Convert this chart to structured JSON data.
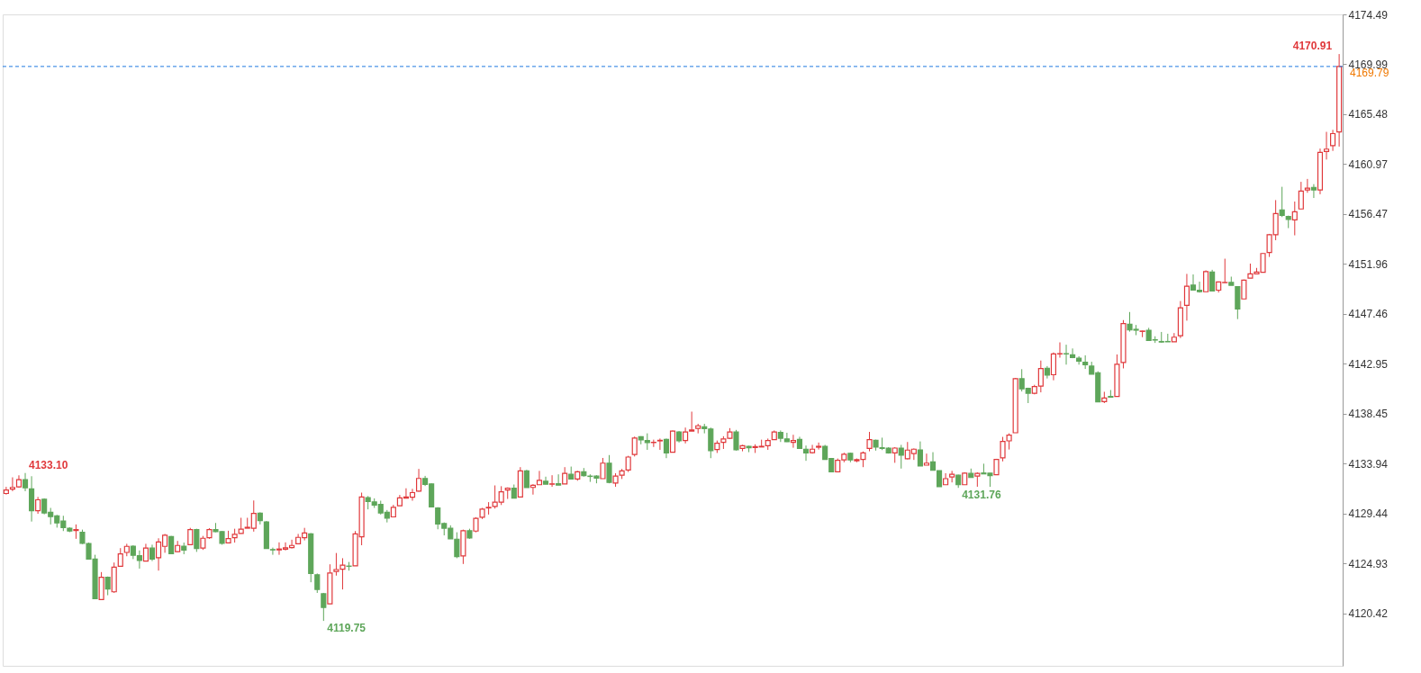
{
  "chart_data": {
    "type": "candlestick",
    "categories": [
      null,
      null,
      null,
      null,
      null,
      null,
      null,
      null,
      null,
      null,
      null,
      null,
      null,
      null,
      null,
      null,
      null,
      null,
      null,
      null,
      null,
      null,
      null,
      null,
      null,
      null,
      null,
      null,
      null,
      null,
      null,
      null,
      null,
      null,
      null,
      null,
      null,
      null,
      null,
      null,
      null,
      null,
      null,
      null,
      null,
      null,
      null,
      null,
      null,
      null,
      null,
      null,
      null,
      null,
      null,
      null,
      null,
      null,
      null,
      null,
      null,
      null,
      null,
      null,
      null,
      null,
      null,
      null,
      null,
      null,
      null,
      null,
      null,
      null,
      null,
      null,
      null,
      null,
      null,
      null,
      null,
      null,
      null,
      null,
      null,
      null,
      null,
      null,
      null,
      null,
      null,
      null,
      null,
      null,
      null,
      null,
      null,
      null,
      null,
      null,
      null,
      null,
      null,
      null,
      null,
      null,
      null,
      null,
      null,
      null,
      null,
      null,
      null,
      null,
      null,
      null,
      null,
      null,
      null,
      null,
      null,
      null,
      null,
      null,
      null,
      null,
      null,
      null,
      null,
      null,
      null,
      null,
      null,
      null,
      null,
      null,
      null,
      null,
      null,
      null,
      null,
      null,
      null,
      null,
      null,
      null,
      null,
      null,
      null,
      null,
      null,
      null,
      null,
      null,
      null,
      null,
      null,
      null,
      null,
      null,
      null,
      null,
      null,
      null,
      null,
      null,
      null,
      null,
      null,
      null,
      null,
      null,
      null,
      null,
      null,
      null,
      null,
      null,
      null,
      null,
      null,
      null,
      null,
      null,
      null,
      null,
      null,
      null,
      null,
      null,
      null,
      null,
      null,
      null,
      null,
      null,
      null,
      null,
      null,
      null,
      null,
      null,
      null,
      null,
      null,
      null,
      null,
      null,
      null,
      null,
      null
    ],
    "ohlc": [
      [
        4131.25,
        4131.85,
        4131.15,
        4131.56
      ],
      [
        4131.64,
        4132.71,
        4131.46,
        4131.8
      ],
      [
        4131.85,
        4132.89,
        4131.77,
        4132.5
      ],
      [
        4132.5,
        4133.1,
        4131.46,
        4131.77
      ],
      [
        4131.67,
        4132.81,
        4128.72,
        4129.69
      ],
      [
        4129.69,
        4130.94,
        4129.42,
        4130.68
      ],
      [
        4130.73,
        4130.81,
        4129.37,
        4129.5
      ],
      [
        4129.55,
        4129.95,
        4128.46,
        4129.16
      ],
      [
        4129.24,
        4129.32,
        4128.17,
        4128.59
      ],
      [
        4128.77,
        4129.24,
        4127.86,
        4128.17
      ],
      [
        4128.12,
        4128.2,
        4127.76,
        4127.86
      ],
      [
        4127.91,
        4128.46,
        4127.16,
        4127.99
      ],
      [
        4127.76,
        4127.99,
        4126.69,
        4126.76
      ],
      [
        4126.74,
        4126.82,
        4125.33,
        4125.33
      ],
      [
        4125.33,
        4125.72,
        4121.76,
        4121.76
      ],
      [
        4121.68,
        4124.16,
        4121.68,
        4123.69
      ],
      [
        4123.69,
        4123.76,
        4122.07,
        4122.64
      ],
      [
        4122.38,
        4125.02,
        4122.28,
        4124.6
      ],
      [
        4124.68,
        4126.32,
        4124.68,
        4125.8
      ],
      [
        4125.93,
        4126.71,
        4125.59,
        4126.48
      ],
      [
        4126.5,
        4126.58,
        4125.33,
        4125.67
      ],
      [
        4125.64,
        4126.11,
        4124.47,
        4125.2
      ],
      [
        4125.15,
        4126.71,
        4125.15,
        4126.32
      ],
      [
        4126.32,
        4126.63,
        4125.15,
        4125.33
      ],
      [
        4125.46,
        4127.21,
        4124.29,
        4126.87
      ],
      [
        4126.48,
        4127.6,
        4125.9,
        4127.49
      ],
      [
        4127.36,
        4127.42,
        4125.82,
        4125.82
      ],
      [
        4126.01,
        4126.97,
        4125.98,
        4126.56
      ],
      [
        4126.5,
        4126.82,
        4125.77,
        4126.14
      ],
      [
        4126.63,
        4128.15,
        4126.63,
        4127.99
      ],
      [
        4127.99,
        4128.07,
        4125.98,
        4126.29
      ],
      [
        4126.32,
        4127.42,
        4126.16,
        4127.21
      ],
      [
        4127.26,
        4128.12,
        4127.16,
        4127.99
      ],
      [
        4127.99,
        4128.59,
        4127.76,
        4127.81
      ],
      [
        4127.81,
        4127.86,
        4126.63,
        4126.76
      ],
      [
        4126.79,
        4127.89,
        4126.76,
        4127.18
      ],
      [
        4127.26,
        4128.07,
        4126.82,
        4127.57
      ],
      [
        4127.65,
        4129.06,
        4127.62,
        4128.04
      ],
      [
        4128.12,
        4129.06,
        4128.12,
        4128.2
      ],
      [
        4128.12,
        4130.62,
        4127.81,
        4129.45
      ],
      [
        4129.48,
        4129.55,
        4128.46,
        4128.8
      ],
      [
        4128.69,
        4128.77,
        4126.29,
        4126.29
      ],
      [
        4126.19,
        4126.37,
        4125.72,
        4126.16
      ],
      [
        4126.16,
        4126.84,
        4125.72,
        4126.24
      ],
      [
        4126.22,
        4126.84,
        4126.11,
        4126.35
      ],
      [
        4126.37,
        4127.08,
        4126.29,
        4126.56
      ],
      [
        4126.71,
        4127.6,
        4126.71,
        4127.29
      ],
      [
        4127.26,
        4128.15,
        4127.02,
        4127.68
      ],
      [
        4127.6,
        4127.68,
        4123.24,
        4124.03
      ],
      [
        4123.92,
        4124.03,
        4122.28,
        4122.59
      ],
      [
        4122.2,
        4122.28,
        4119.75,
        4120.97
      ],
      [
        4121.29,
        4124.86,
        4121.29,
        4124.08
      ],
      [
        4124.21,
        4125.88,
        4123.84,
        4124.39
      ],
      [
        4124.42,
        4125.41,
        4122.59,
        4124.78
      ],
      [
        4124.7,
        4125.07,
        4124.29,
        4124.68
      ],
      [
        4124.73,
        4127.86,
        4124.73,
        4127.6
      ],
      [
        4127.34,
        4131.33,
        4126.58,
        4130.94
      ],
      [
        4130.88,
        4131.02,
        4129.82,
        4130.52
      ],
      [
        4130.49,
        4130.81,
        4129.95,
        4130.21
      ],
      [
        4130.26,
        4130.6,
        4129.35,
        4129.5
      ],
      [
        4129.55,
        4129.76,
        4128.64,
        4129.03
      ],
      [
        4129.14,
        4130.23,
        4129.14,
        4130.0
      ],
      [
        4130.15,
        4131.12,
        4130.15,
        4130.86
      ],
      [
        4130.83,
        4131.72,
        4130.83,
        4130.94
      ],
      [
        4130.91,
        4131.67,
        4130.6,
        4131.33
      ],
      [
        4131.46,
        4133.47,
        4131.41,
        4132.61
      ],
      [
        4132.61,
        4132.84,
        4131.93,
        4132.08
      ],
      [
        4132.11,
        4132.16,
        4130.05,
        4130.05
      ],
      [
        4129.95,
        4130.02,
        4128.02,
        4128.49
      ],
      [
        4128.54,
        4128.64,
        4127.47,
        4128.12
      ],
      [
        4128.12,
        4128.38,
        4127.16,
        4127.16
      ],
      [
        4127.13,
        4127.75,
        4125.41,
        4125.56
      ],
      [
        4125.62,
        4127.99,
        4124.89,
        4127.89
      ],
      [
        4127.89,
        4128.07,
        4127.16,
        4127.23
      ],
      [
        4127.86,
        4129.11,
        4127.75,
        4129.01
      ],
      [
        4129.11,
        4129.95,
        4128.95,
        4129.84
      ],
      [
        4129.95,
        4130.47,
        4129.35,
        4130.0
      ],
      [
        4130.08,
        4131.98,
        4129.89,
        4130.47
      ],
      [
        4130.47,
        4131.91,
        4130.21,
        4131.41
      ],
      [
        4131.57,
        4131.8,
        4130.76,
        4131.72
      ],
      [
        4131.72,
        4132.06,
        4130.84,
        4130.84
      ],
      [
        4130.94,
        4133.63,
        4130.94,
        4133.29
      ],
      [
        4133.29,
        4133.39,
        4131.78,
        4131.78
      ],
      [
        4131.8,
        4132.09,
        4131.15,
        4131.99
      ],
      [
        4132.04,
        4133.29,
        4132.04,
        4132.43
      ],
      [
        4132.35,
        4132.77,
        4132.09,
        4132.09
      ],
      [
        4132.09,
        4132.9,
        4131.86,
        4132.12
      ],
      [
        4132.14,
        4132.98,
        4132.01,
        4132.01
      ],
      [
        4132.12,
        4133.63,
        4132.12,
        4133.06
      ],
      [
        4132.98,
        4133.68,
        4132.56,
        4132.56
      ],
      [
        4132.56,
        4133.29,
        4132.4,
        4133.21
      ],
      [
        4133.21,
        4133.55,
        4132.77,
        4132.87
      ],
      [
        4132.82,
        4132.98,
        4132.3,
        4132.79
      ],
      [
        4132.82,
        4132.9,
        4132.17,
        4132.64
      ],
      [
        4132.59,
        4134.46,
        4132.59,
        4133.99
      ],
      [
        4133.99,
        4134.72,
        4132.17,
        4132.25
      ],
      [
        4132.19,
        4133.08,
        4131.86,
        4132.82
      ],
      [
        4132.9,
        4133.47,
        4132.56,
        4133.29
      ],
      [
        4133.37,
        4134.65,
        4133.19,
        4134.54
      ],
      [
        4134.78,
        4136.39,
        4134.59,
        4136.26
      ],
      [
        4136.37,
        4136.42,
        4135.69,
        4136.08
      ],
      [
        4136.03,
        4136.68,
        4135.19,
        4135.85
      ],
      [
        4135.85,
        4136.11,
        4135.45,
        4135.87
      ],
      [
        4136.0,
        4136.21,
        4135.19,
        4136.05
      ],
      [
        4136.13,
        4136.21,
        4134.44,
        4134.91
      ],
      [
        4134.98,
        4136.94,
        4134.98,
        4136.89
      ],
      [
        4136.81,
        4136.89,
        4135.85,
        4136.0
      ],
      [
        4136.03,
        4137.2,
        4135.77,
        4136.81
      ],
      [
        4136.89,
        4138.64,
        4136.89,
        4136.99
      ],
      [
        4137.12,
        4137.54,
        4136.68,
        4137.36
      ],
      [
        4137.28,
        4137.54,
        4136.68,
        4137.1
      ],
      [
        4137.07,
        4137.2,
        4134.44,
        4135.12
      ],
      [
        4135.22,
        4136.03,
        4134.91,
        4135.79
      ],
      [
        4135.87,
        4136.42,
        4135.27,
        4136.18
      ],
      [
        4136.24,
        4137.15,
        4136.16,
        4136.81
      ],
      [
        4136.81,
        4136.99,
        4135.12,
        4135.19
      ],
      [
        4135.32,
        4135.64,
        4135.06,
        4135.56
      ],
      [
        4135.51,
        4135.56,
        4134.98,
        4135.38
      ],
      [
        4135.4,
        4135.69,
        4134.91,
        4135.48
      ],
      [
        4135.45,
        4136.11,
        4135.45,
        4135.51
      ],
      [
        4135.56,
        4136.21,
        4135.19,
        4136.03
      ],
      [
        4136.11,
        4136.94,
        4136.11,
        4136.81
      ],
      [
        4136.76,
        4136.94,
        4135.9,
        4136.24
      ],
      [
        4136.18,
        4136.73,
        4135.9,
        4135.92
      ],
      [
        4135.87,
        4136.55,
        4135.38,
        4136.03
      ],
      [
        4136.13,
        4136.37,
        4135.32,
        4135.32
      ],
      [
        4135.25,
        4135.58,
        4134.2,
        4134.91
      ],
      [
        4134.93,
        4135.64,
        4134.85,
        4135.25
      ],
      [
        4135.43,
        4135.85,
        4135.22,
        4135.51
      ],
      [
        4135.51,
        4135.64,
        4134.33,
        4134.33
      ],
      [
        4134.41,
        4134.46,
        4133.21,
        4133.21
      ],
      [
        4133.21,
        4134.41,
        4133.21,
        4134.25
      ],
      [
        4134.28,
        4134.93,
        4134.07,
        4134.8
      ],
      [
        4134.88,
        4134.93,
        4134.07,
        4134.28
      ],
      [
        4134.2,
        4134.41,
        4134.07,
        4134.31
      ],
      [
        4134.33,
        4135.04,
        4133.63,
        4134.91
      ],
      [
        4135.32,
        4136.81,
        4135.06,
        4136.11
      ],
      [
        4136.05,
        4136.11,
        4135.12,
        4135.43
      ],
      [
        4135.38,
        4136.29,
        4135.17,
        4135.32
      ],
      [
        4135.35,
        4135.43,
        4134.85,
        4134.91
      ],
      [
        4134.91,
        4135.43,
        4134.02,
        4135.35
      ],
      [
        4135.35,
        4135.64,
        4133.5,
        4134.7
      ],
      [
        4134.39,
        4135.9,
        4134.33,
        4135.17
      ],
      [
        4134.85,
        4135.32,
        4134.28,
        4135.25
      ],
      [
        4135.19,
        4135.95,
        4133.73,
        4133.73
      ],
      [
        4133.81,
        4134.85,
        4133.81,
        4133.99
      ],
      [
        4134.1,
        4134.98,
        4133.34,
        4133.34
      ],
      [
        4133.32,
        4133.32,
        4131.86,
        4131.86
      ],
      [
        4132.04,
        4133.08,
        4132.04,
        4132.59
      ],
      [
        4132.74,
        4133.29,
        4132.25,
        4132.98
      ],
      [
        4132.9,
        4132.95,
        4131.76,
        4132.04
      ],
      [
        4132.04,
        4133.16,
        4132.04,
        4133.08
      ],
      [
        4133.06,
        4133.5,
        4132.69,
        4132.69
      ],
      [
        4132.82,
        4133.16,
        4131.86,
        4133.06
      ],
      [
        4133.1,
        4133.94,
        4133.02,
        4133.02
      ],
      [
        4133.08,
        4133.1,
        4131.85,
        4132.87
      ],
      [
        4132.95,
        4134.38,
        4132.95,
        4134.33
      ],
      [
        4134.46,
        4136.36,
        4134.15,
        4135.95
      ],
      [
        4136.0,
        4136.68,
        4135.22,
        4136.52
      ],
      [
        4136.73,
        4141.68,
        4136.73,
        4141.61
      ],
      [
        4141.61,
        4142.47,
        4140.46,
        4140.69
      ],
      [
        4140.74,
        4140.8,
        4139.41,
        4140.3
      ],
      [
        4140.3,
        4141.06,
        4140.2,
        4140.9
      ],
      [
        4140.95,
        4143.25,
        4140.38,
        4142.52
      ],
      [
        4142.54,
        4142.75,
        4141.63,
        4141.94
      ],
      [
        4141.97,
        4143.98,
        4141.47,
        4143.85
      ],
      [
        4143.85,
        4144.89,
        4143.51,
        4143.87
      ],
      [
        4143.87,
        4144.68,
        4142.88,
        4143.85
      ],
      [
        4143.77,
        4144.34,
        4143.46,
        4143.51
      ],
      [
        4143.46,
        4143.64,
        4142.88,
        4143.2
      ],
      [
        4143.09,
        4143.72,
        4142.49,
        4142.88
      ],
      [
        4142.75,
        4143.14,
        4142.02,
        4142.02
      ],
      [
        4142.15,
        4142.28,
        4139.52,
        4139.52
      ],
      [
        4139.54,
        4140.43,
        4139.41,
        4139.86
      ],
      [
        4140.01,
        4140.59,
        4139.94,
        4139.94
      ],
      [
        4140.01,
        4143.8,
        4140.01,
        4142.91
      ],
      [
        4143.07,
        4146.9,
        4142.54,
        4146.59
      ],
      [
        4146.53,
        4147.63,
        4145.86,
        4146.01
      ],
      [
        4146.07,
        4146.46,
        4145.54,
        4145.99
      ],
      [
        4145.88,
        4145.94,
        4145.36,
        4145.91
      ],
      [
        4145.99,
        4146.2,
        4145.07,
        4145.07
      ],
      [
        4145.13,
        4145.44,
        4144.84,
        4145.1
      ],
      [
        4144.97,
        4145.83,
        4144.87,
        4144.92
      ],
      [
        4144.97,
        4145.67,
        4144.94,
        4144.94
      ],
      [
        4144.94,
        4145.73,
        4144.94,
        4145.36
      ],
      [
        4145.49,
        4148.62,
        4145.28,
        4148.0
      ],
      [
        4148.23,
        4151.07,
        4146.85,
        4149.95
      ],
      [
        4150.06,
        4151.02,
        4149.61,
        4149.61
      ],
      [
        4149.59,
        4150.37,
        4149.38,
        4149.46
      ],
      [
        4149.46,
        4151.39,
        4149.46,
        4151.28
      ],
      [
        4151.23,
        4151.44,
        4149.53,
        4149.53
      ],
      [
        4149.6,
        4150.38,
        4149.39,
        4150.35
      ],
      [
        4150.28,
        4152.44,
        4150.25,
        4150.3
      ],
      [
        4150.3,
        4150.82,
        4150.04,
        4150.04
      ],
      [
        4149.91,
        4149.94,
        4146.99,
        4147.9
      ],
      [
        4148.81,
        4150.56,
        4148.81,
        4150.51
      ],
      [
        4150.69,
        4152.0,
        4150.69,
        4151.08
      ],
      [
        4151.08,
        4151.61,
        4151.08,
        4151.24
      ],
      [
        4151.21,
        4152.96,
        4151.21,
        4152.91
      ],
      [
        4153.01,
        4154.68,
        4152.6,
        4154.61
      ],
      [
        4154.61,
        4157.73,
        4154.11,
        4156.51
      ],
      [
        4156.85,
        4158.93,
        4156.2,
        4156.35
      ],
      [
        4156.25,
        4156.33,
        4155.2,
        4155.99
      ],
      [
        4155.94,
        4157.6,
        4154.55,
        4156.67
      ],
      [
        4156.93,
        4159.38,
        4156.93,
        4158.54
      ],
      [
        4158.65,
        4159.64,
        4158.39,
        4158.8
      ],
      [
        4158.88,
        4159.17,
        4157.92,
        4158.65
      ],
      [
        4158.65,
        4162.38,
        4158.26,
        4162.04
      ],
      [
        4162.12,
        4163.89,
        4161.39,
        4162.33
      ],
      [
        4162.64,
        4164.07,
        4162.17,
        4163.73
      ],
      [
        4163.89,
        4170.91,
        4162.56,
        4169.79
      ]
    ],
    "colors": [
      "#e0383b",
      "#e0383b",
      "#e0383b",
      "#5ea65a",
      "#5ea65a",
      "#e0383b",
      "#5ea65a",
      "#5ea65a",
      "#5ea65a",
      "#5ea65a",
      "#5ea65a",
      "#e0383b",
      "#5ea65a",
      "#5ea65a",
      "#5ea65a",
      "#e0383b",
      "#5ea65a",
      "#e0383b",
      "#e0383b",
      "#e0383b",
      "#5ea65a",
      "#5ea65a",
      "#e0383b",
      "#5ea65a",
      "#e0383b",
      "#e0383b",
      "#5ea65a",
      "#e0383b",
      "#5ea65a",
      "#e0383b",
      "#5ea65a",
      "#e0383b",
      "#e0383b",
      "#5ea65a",
      "#5ea65a",
      "#e0383b",
      "#e0383b",
      "#e0383b",
      "#e0383b",
      "#e0383b",
      "#5ea65a",
      "#5ea65a",
      "#5ea65a",
      "#e0383b",
      "#e0383b",
      "#e0383b",
      "#e0383b",
      "#e0383b",
      "#5ea65a",
      "#5ea65a",
      "#5ea65a",
      "#e0383b",
      "#e0383b",
      "#e0383b",
      "#5ea65a",
      "#e0383b",
      "#e0383b",
      "#5ea65a",
      "#5ea65a",
      "#5ea65a",
      "#5ea65a",
      "#e0383b",
      "#e0383b",
      "#e0383b",
      "#e0383b",
      "#e0383b",
      "#5ea65a",
      "#5ea65a",
      "#5ea65a",
      "#5ea65a",
      "#5ea65a",
      "#5ea65a",
      "#e0383b",
      "#5ea65a",
      "#e0383b",
      "#e0383b",
      "#e0383b",
      "#e0383b",
      "#e0383b",
      "#e0383b",
      "#5ea65a",
      "#e0383b",
      "#5ea65a",
      "#e0383b",
      "#e0383b",
      "#5ea65a",
      "#e0383b",
      "#5ea65a",
      "#e0383b",
      "#5ea65a",
      "#e0383b",
      "#5ea65a",
      "#5ea65a",
      "#5ea65a",
      "#e0383b",
      "#5ea65a",
      "#e0383b",
      "#e0383b",
      "#e0383b",
      "#e0383b",
      "#5ea65a",
      "#5ea65a",
      "#e0383b",
      "#e0383b",
      "#5ea65a",
      "#e0383b",
      "#5ea65a",
      "#e0383b",
      "#e0383b",
      "#e0383b",
      "#5ea65a",
      "#5ea65a",
      "#e0383b",
      "#e0383b",
      "#e0383b",
      "#5ea65a",
      "#e0383b",
      "#5ea65a",
      "#e0383b",
      "#e0383b",
      "#e0383b",
      "#e0383b",
      "#5ea65a",
      "#5ea65a",
      "#e0383b",
      "#5ea65a",
      "#5ea65a",
      "#e0383b",
      "#e0383b",
      "#5ea65a",
      "#5ea65a",
      "#e0383b",
      "#e0383b",
      "#5ea65a",
      "#e0383b",
      "#e0383b",
      "#e0383b",
      "#5ea65a",
      "#5ea65a",
      "#5ea65a",
      "#e0383b",
      "#5ea65a",
      "#e0383b",
      "#e0383b",
      "#5ea65a",
      "#e0383b",
      "#5ea65a",
      "#5ea65a",
      "#e0383b",
      "#e0383b",
      "#5ea65a",
      "#e0383b",
      "#5ea65a",
      "#e0383b",
      "#5ea65a",
      "#5ea65a",
      "#e0383b",
      "#e0383b",
      "#e0383b",
      "#e0383b",
      "#5ea65a",
      "#5ea65a",
      "#e0383b",
      "#e0383b",
      "#5ea65a",
      "#e0383b",
      "#e0383b",
      "#5ea65a",
      "#5ea65a",
      "#5ea65a",
      "#5ea65a",
      "#5ea65a",
      "#5ea65a",
      "#e0383b",
      "#5ea65a",
      "#e0383b",
      "#e0383b",
      "#5ea65a",
      "#5ea65a",
      "#e0383b",
      "#5ea65a",
      "#5ea65a",
      "#5ea65a",
      "#5ea65a",
      "#e0383b",
      "#e0383b",
      "#e0383b",
      "#5ea65a",
      "#5ea65a",
      "#e0383b",
      "#5ea65a",
      "#e0383b",
      "#e0383b",
      "#5ea65a",
      "#5ea65a",
      "#e0383b",
      "#e0383b",
      "#e0383b",
      "#e0383b",
      "#e0383b",
      "#e0383b",
      "#5ea65a",
      "#5ea65a",
      "#e0383b",
      "#e0383b",
      "#e0383b",
      "#5ea65a",
      "#e0383b",
      "#e0383b",
      "#e0383b",
      "#e0383b"
    ],
    "ylim": [
      4115.7,
      4174.49
    ],
    "yticks": [
      4120.42,
      4124.93,
      4129.44,
      4133.94,
      4138.45,
      4142.95,
      4147.46,
      4151.96,
      4156.47,
      4160.97,
      4165.48,
      4169.99,
      4174.49
    ],
    "tick_labels": "y",
    "grid": false,
    "ref_lines": [
      {
        "axis": "y",
        "value": 4169.79,
        "label": "4169.79",
        "color": "#1f78e0",
        "line_style": "dashed"
      }
    ],
    "annotations": [
      "4133.10",
      "4119.75",
      "4131.76",
      "4170.91"
    ]
  }
}
